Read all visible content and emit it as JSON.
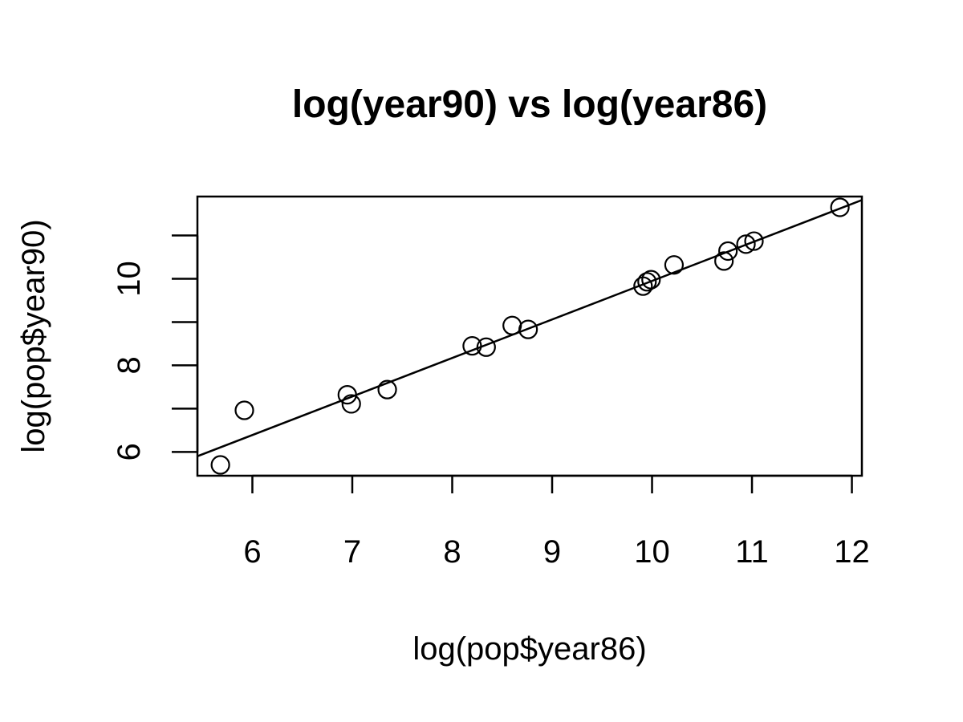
{
  "chart_data": {
    "type": "scatter",
    "title": "log(year90) vs log(year86)",
    "xlabel": "log(pop$year86)",
    "ylabel": "log(pop$year90)",
    "xlim": [
      5.45,
      12.1
    ],
    "ylim": [
      5.45,
      11.9
    ],
    "x_ticks": [
      6,
      7,
      8,
      9,
      10,
      11,
      12
    ],
    "y_ticks": [
      6,
      7,
      8,
      9,
      10,
      11
    ],
    "y_tick_labels": [
      "6",
      "",
      "8",
      "",
      "10",
      ""
    ],
    "grid": false,
    "legend": "none",
    "points": [
      {
        "x": 5.68,
        "y": 5.7
      },
      {
        "x": 5.92,
        "y": 6.96
      },
      {
        "x": 6.95,
        "y": 7.32
      },
      {
        "x": 6.99,
        "y": 7.11
      },
      {
        "x": 7.35,
        "y": 7.44
      },
      {
        "x": 8.2,
        "y": 8.45
      },
      {
        "x": 8.34,
        "y": 8.42
      },
      {
        "x": 8.6,
        "y": 8.92
      },
      {
        "x": 8.76,
        "y": 8.83
      },
      {
        "x": 9.91,
        "y": 9.83
      },
      {
        "x": 9.95,
        "y": 9.93
      },
      {
        "x": 9.99,
        "y": 9.98
      },
      {
        "x": 10.22,
        "y": 10.32
      },
      {
        "x": 10.72,
        "y": 10.41
      },
      {
        "x": 10.76,
        "y": 10.64
      },
      {
        "x": 10.94,
        "y": 10.8
      },
      {
        "x": 11.02,
        "y": 10.87
      },
      {
        "x": 11.88,
        "y": 11.65
      }
    ],
    "fit_line": {
      "intercept": 1.05,
      "slope": 0.89
    }
  }
}
